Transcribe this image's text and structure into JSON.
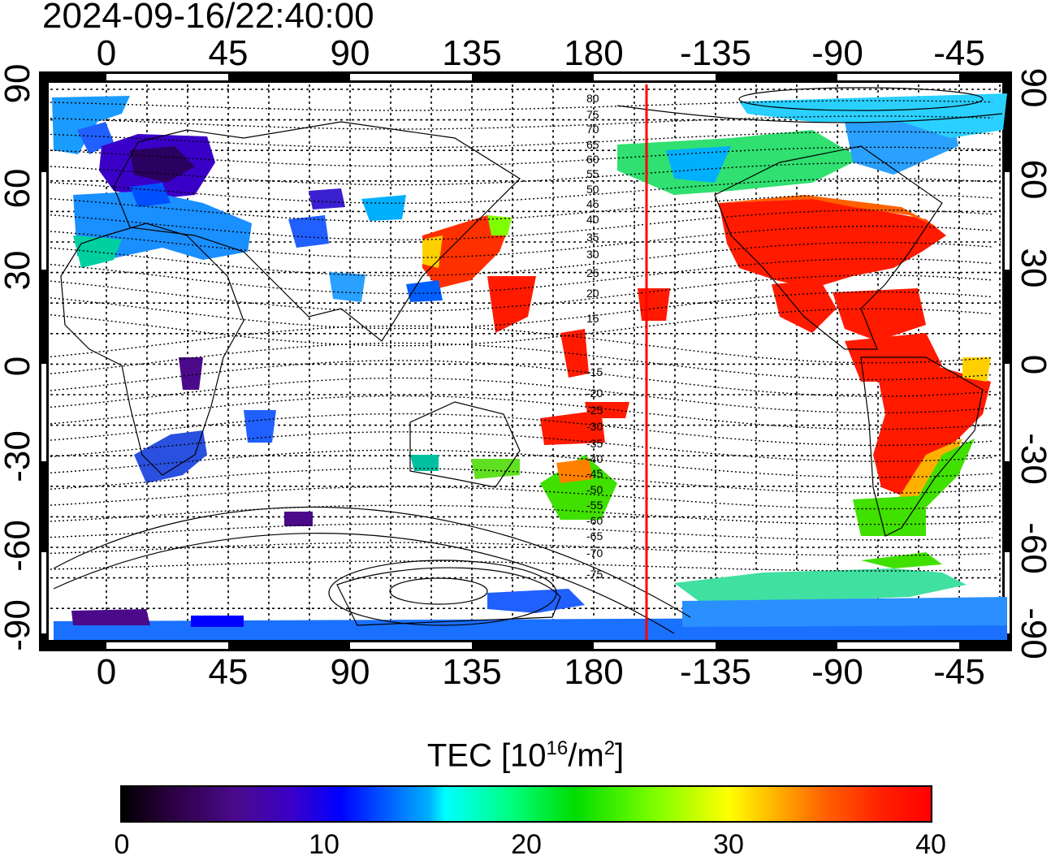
{
  "header": {
    "timestamp": "2024-09-16/22:40:00"
  },
  "map": {
    "longitude_ticks": [
      "0",
      "45",
      "90",
      "135",
      "180",
      "-135",
      "-90",
      "-45"
    ],
    "latitude_ticks": [
      "90",
      "60",
      "30",
      "0",
      "-30",
      "-60",
      "-90"
    ],
    "contour_labels_north": [
      "80",
      "75",
      "70",
      "65",
      "60",
      "55",
      "50",
      "45",
      "40",
      "35",
      "30",
      "25",
      "20",
      "15"
    ],
    "contour_labels_south": [
      "-15",
      "-20",
      "-25",
      "-30",
      "-35",
      "-40",
      "-45",
      "-50",
      "-55",
      "-60",
      "-65",
      "-70",
      "-75"
    ],
    "terminator_line_color": "#ff0000",
    "regions": [
      {
        "name": "north-atlantic-arctic",
        "tec": 14
      },
      {
        "name": "scandinavia",
        "tec": 3
      },
      {
        "name": "europe",
        "tec": 12
      },
      {
        "name": "central-asia",
        "tec": 11
      },
      {
        "name": "japan",
        "tec": 36
      },
      {
        "name": "north-america",
        "tec": 38
      },
      {
        "name": "canada",
        "tec": 22
      },
      {
        "name": "south-america",
        "tec": 37
      },
      {
        "name": "southern-africa",
        "tec": 8
      },
      {
        "name": "new-zealand",
        "tec": 27
      },
      {
        "name": "antarctica",
        "tec": 12
      }
    ]
  },
  "colorbar": {
    "title_prefix": "TEC  [10",
    "title_exp": "16",
    "title_mid": "/m",
    "title_exp2": "2",
    "title_suffix": "]",
    "ticks": [
      "0",
      "10",
      "20",
      "30",
      "40"
    ],
    "range": [
      0,
      40
    ],
    "colors": [
      "#000000",
      "#4a0a8a",
      "#0000ff",
      "#00ffff",
      "#00dd00",
      "#ffff00",
      "#ff6000",
      "#ff0000"
    ]
  }
}
